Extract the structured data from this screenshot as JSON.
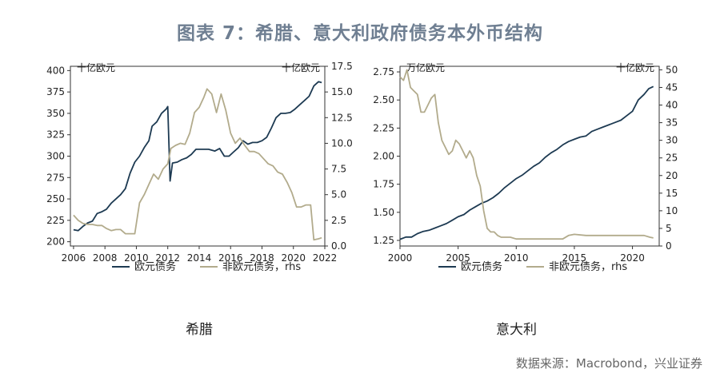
{
  "page": {
    "title": "图表 7：希腊、意大利政府债务本外币结构",
    "source": "数据来源：Macrobond，兴业证券"
  },
  "chart_data": [
    {
      "id": "greece",
      "type": "line",
      "caption": "希腊",
      "left_unit": "十亿欧元",
      "right_unit": "十亿欧元",
      "x_ticks": [
        "2006",
        "2008",
        "2010",
        "2012",
        "2014",
        "2016",
        "2018",
        "2020",
        "2022"
      ],
      "y_left_ticks": [
        "200",
        "225",
        "250",
        "275",
        "300",
        "325",
        "350",
        "375",
        "400"
      ],
      "y_right_ticks": [
        "0.0",
        "2.5",
        "5.0",
        "7.5",
        "10.0",
        "12.5",
        "15.0",
        "17.5"
      ],
      "xlim": [
        2005.8,
        2022.0
      ],
      "ylim_left": [
        195,
        405
      ],
      "ylim_right": [
        0,
        17.5
      ],
      "series": [
        {
          "name": "欧元债务",
          "axis": "left",
          "color": "#1d3a52",
          "points": [
            [
              2006.0,
              214
            ],
            [
              2006.3,
              213
            ],
            [
              2006.6,
              218
            ],
            [
              2006.9,
              222
            ],
            [
              2007.2,
              224
            ],
            [
              2007.5,
              233
            ],
            [
              2007.8,
              235
            ],
            [
              2008.1,
              238
            ],
            [
              2008.4,
              245
            ],
            [
              2008.7,
              250
            ],
            [
              2009.0,
              255
            ],
            [
              2009.3,
              262
            ],
            [
              2009.6,
              280
            ],
            [
              2009.9,
              293
            ],
            [
              2010.2,
              300
            ],
            [
              2010.5,
              310
            ],
            [
              2010.8,
              318
            ],
            [
              2011.0,
              335
            ],
            [
              2011.3,
              340
            ],
            [
              2011.6,
              350
            ],
            [
              2011.9,
              355
            ],
            [
              2012.0,
              358
            ],
            [
              2012.15,
              271
            ],
            [
              2012.3,
              292
            ],
            [
              2012.6,
              293
            ],
            [
              2012.9,
              296
            ],
            [
              2013.2,
              298
            ],
            [
              2013.5,
              302
            ],
            [
              2013.8,
              308
            ],
            [
              2014.2,
              308
            ],
            [
              2014.6,
              308
            ],
            [
              2015.0,
              306
            ],
            [
              2015.3,
              309
            ],
            [
              2015.6,
              300
            ],
            [
              2015.9,
              300
            ],
            [
              2016.2,
              305
            ],
            [
              2016.5,
              310
            ],
            [
              2016.8,
              318
            ],
            [
              2017.1,
              314
            ],
            [
              2017.4,
              316
            ],
            [
              2017.7,
              316
            ],
            [
              2018.0,
              318
            ],
            [
              2018.3,
              322
            ],
            [
              2018.6,
              333
            ],
            [
              2018.9,
              345
            ],
            [
              2019.2,
              350
            ],
            [
              2019.5,
              350
            ],
            [
              2019.8,
              351
            ],
            [
              2020.1,
              355
            ],
            [
              2020.4,
              360
            ],
            [
              2020.7,
              365
            ],
            [
              2021.0,
              370
            ],
            [
              2021.3,
              382
            ],
            [
              2021.6,
              387
            ],
            [
              2021.8,
              386
            ]
          ]
        },
        {
          "name": "非欧元债务，rhs",
          "axis": "right",
          "color": "#b2ab8c",
          "points": [
            [
              2006.0,
              3.0
            ],
            [
              2006.3,
              2.5
            ],
            [
              2006.6,
              2.2
            ],
            [
              2006.9,
              2.1
            ],
            [
              2007.2,
              2.1
            ],
            [
              2007.5,
              2.0
            ],
            [
              2007.8,
              2.0
            ],
            [
              2008.1,
              1.7
            ],
            [
              2008.4,
              1.5
            ],
            [
              2008.7,
              1.6
            ],
            [
              2009.0,
              1.6
            ],
            [
              2009.3,
              1.2
            ],
            [
              2009.6,
              1.2
            ],
            [
              2009.9,
              1.2
            ],
            [
              2010.2,
              4.2
            ],
            [
              2010.5,
              5.0
            ],
            [
              2010.8,
              6.0
            ],
            [
              2011.1,
              7.0
            ],
            [
              2011.4,
              6.5
            ],
            [
              2011.7,
              7.5
            ],
            [
              2012.0,
              8.0
            ],
            [
              2012.2,
              9.5
            ],
            [
              2012.5,
              9.8
            ],
            [
              2012.8,
              10.0
            ],
            [
              2013.1,
              9.9
            ],
            [
              2013.4,
              11.0
            ],
            [
              2013.7,
              13.0
            ],
            [
              2014.0,
              13.5
            ],
            [
              2014.3,
              14.5
            ],
            [
              2014.5,
              15.3
            ],
            [
              2014.8,
              14.8
            ],
            [
              2015.1,
              13.0
            ],
            [
              2015.4,
              14.8
            ],
            [
              2015.7,
              13.2
            ],
            [
              2016.0,
              11.0
            ],
            [
              2016.3,
              10.0
            ],
            [
              2016.6,
              10.5
            ],
            [
              2016.9,
              9.8
            ],
            [
              2017.2,
              9.2
            ],
            [
              2017.5,
              9.2
            ],
            [
              2017.8,
              9.0
            ],
            [
              2018.1,
              8.5
            ],
            [
              2018.4,
              8.0
            ],
            [
              2018.7,
              7.8
            ],
            [
              2019.0,
              7.2
            ],
            [
              2019.3,
              7.0
            ],
            [
              2019.6,
              6.2
            ],
            [
              2019.9,
              5.2
            ],
            [
              2020.2,
              3.8
            ],
            [
              2020.5,
              3.8
            ],
            [
              2020.8,
              4.0
            ],
            [
              2021.1,
              4.0
            ],
            [
              2021.3,
              0.6
            ],
            [
              2021.6,
              0.7
            ],
            [
              2021.8,
              0.8
            ]
          ]
        }
      ]
    },
    {
      "id": "italy",
      "type": "line",
      "caption": "意大利",
      "left_unit": "万亿欧元",
      "right_unit": "十亿欧元",
      "x_ticks": [
        "2000",
        "2005",
        "2010",
        "2015",
        "2020"
      ],
      "y_left_ticks": [
        "1.25",
        "1.50",
        "1.75",
        "2.00",
        "2.25",
        "2.50",
        "2.75"
      ],
      "y_right_ticks": [
        "0",
        "5",
        "10",
        "15",
        "20",
        "25",
        "30",
        "35",
        "40",
        "45",
        "50"
      ],
      "xlim": [
        2000,
        2022.3
      ],
      "ylim_left": [
        1.2,
        2.8
      ],
      "ylim_right": [
        0,
        51
      ],
      "series": [
        {
          "name": "欧元债务",
          "axis": "left",
          "color": "#1d3a52",
          "points": [
            [
              2000.0,
              1.26
            ],
            [
              2000.5,
              1.28
            ],
            [
              2001.0,
              1.28
            ],
            [
              2001.5,
              1.31
            ],
            [
              2002.0,
              1.33
            ],
            [
              2002.5,
              1.34
            ],
            [
              2003.0,
              1.36
            ],
            [
              2003.5,
              1.38
            ],
            [
              2004.0,
              1.4
            ],
            [
              2004.5,
              1.43
            ],
            [
              2005.0,
              1.46
            ],
            [
              2005.5,
              1.48
            ],
            [
              2006.0,
              1.52
            ],
            [
              2006.5,
              1.55
            ],
            [
              2007.0,
              1.58
            ],
            [
              2007.5,
              1.6
            ],
            [
              2008.0,
              1.63
            ],
            [
              2008.5,
              1.67
            ],
            [
              2009.0,
              1.72
            ],
            [
              2009.5,
              1.76
            ],
            [
              2010.0,
              1.8
            ],
            [
              2010.5,
              1.83
            ],
            [
              2011.0,
              1.87
            ],
            [
              2011.5,
              1.91
            ],
            [
              2012.0,
              1.94
            ],
            [
              2012.5,
              1.99
            ],
            [
              2013.0,
              2.03
            ],
            [
              2013.5,
              2.06
            ],
            [
              2014.0,
              2.1
            ],
            [
              2014.5,
              2.13
            ],
            [
              2015.0,
              2.15
            ],
            [
              2015.5,
              2.17
            ],
            [
              2016.0,
              2.18
            ],
            [
              2016.5,
              2.22
            ],
            [
              2017.0,
              2.24
            ],
            [
              2017.5,
              2.26
            ],
            [
              2018.0,
              2.28
            ],
            [
              2018.5,
              2.3
            ],
            [
              2019.0,
              2.32
            ],
            [
              2019.5,
              2.36
            ],
            [
              2020.0,
              2.4
            ],
            [
              2020.5,
              2.5
            ],
            [
              2021.0,
              2.55
            ],
            [
              2021.4,
              2.6
            ],
            [
              2021.8,
              2.62
            ]
          ]
        },
        {
          "name": "非欧元债务，rhs",
          "axis": "right",
          "color": "#b2ab8c",
          "points": [
            [
              2000.0,
              48
            ],
            [
              2000.3,
              47
            ],
            [
              2000.6,
              50
            ],
            [
              2000.9,
              45
            ],
            [
              2001.2,
              44
            ],
            [
              2001.5,
              43
            ],
            [
              2001.8,
              38
            ],
            [
              2002.1,
              38
            ],
            [
              2002.4,
              40
            ],
            [
              2002.7,
              42
            ],
            [
              2003.0,
              43
            ],
            [
              2003.3,
              35
            ],
            [
              2003.6,
              30
            ],
            [
              2003.9,
              28
            ],
            [
              2004.2,
              26
            ],
            [
              2004.5,
              27
            ],
            [
              2004.8,
              30
            ],
            [
              2005.1,
              29
            ],
            [
              2005.4,
              27
            ],
            [
              2005.7,
              25
            ],
            [
              2006.0,
              27
            ],
            [
              2006.3,
              25
            ],
            [
              2006.6,
              20
            ],
            [
              2006.9,
              17
            ],
            [
              2007.2,
              10
            ],
            [
              2007.5,
              5
            ],
            [
              2007.8,
              4
            ],
            [
              2008.1,
              4
            ],
            [
              2008.4,
              3
            ],
            [
              2008.7,
              2.5
            ],
            [
              2009.0,
              2.5
            ],
            [
              2009.5,
              2.5
            ],
            [
              2010.0,
              2
            ],
            [
              2011.0,
              2
            ],
            [
              2012.0,
              2
            ],
            [
              2013.0,
              2
            ],
            [
              2014.0,
              2
            ],
            [
              2014.5,
              3
            ],
            [
              2015.0,
              3.3
            ],
            [
              2016.0,
              3
            ],
            [
              2017.0,
              3
            ],
            [
              2018.0,
              3
            ],
            [
              2019.0,
              3
            ],
            [
              2020.0,
              3
            ],
            [
              2021.0,
              3
            ],
            [
              2021.5,
              2.5
            ],
            [
              2021.8,
              2.3
            ]
          ]
        }
      ]
    }
  ]
}
